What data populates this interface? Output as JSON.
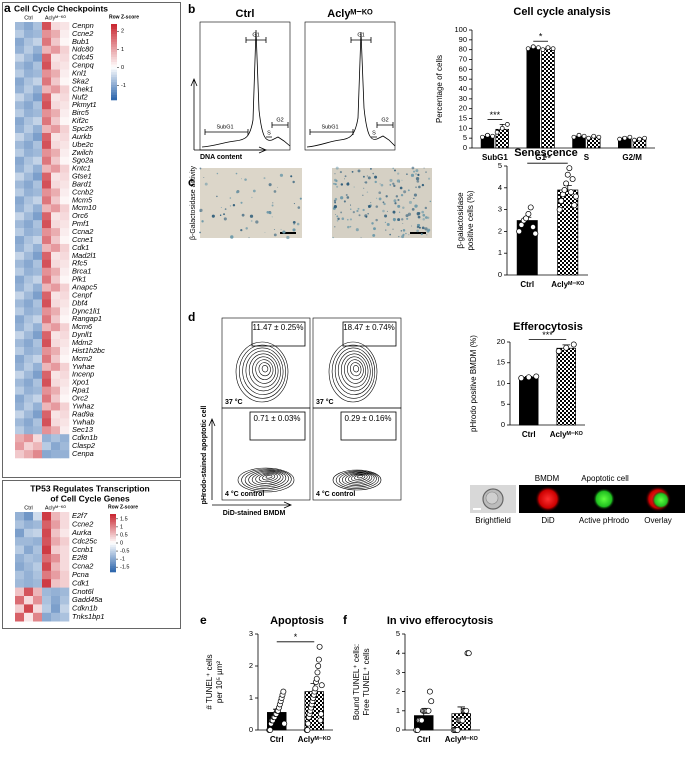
{
  "panels": [
    "a",
    "b",
    "c",
    "d",
    "e",
    "f"
  ],
  "flow_histograms": {
    "titles": [
      "Ctrl",
      "Aclyᴹ⁻ᴷᴼ"
    ],
    "gates": [
      "SubG1",
      "G1",
      "S",
      "G2"
    ],
    "x_label": "DNA content"
  },
  "senescence_images": {
    "y_label": "β-Galactosidase activity"
  },
  "flow_plots": {
    "percentages": [
      "11.47 ± 0.25%",
      "18.47 ± 0.74%",
      "0.71 ± 0.03%",
      "0.29 ± 0.16%"
    ],
    "conditions": [
      "37 °C",
      "4 °C control"
    ],
    "y_label": "pHrodo-stained apoptotic cell",
    "x_label": "DiD-stained BMDM"
  },
  "cell_images": {
    "top_labels": [
      "BMDM",
      "Apoptotic cell"
    ],
    "bottom_labels": [
      "Brightfield",
      "DiD",
      "Active pHrodo",
      "Overlay"
    ]
  },
  "chart_data": [
    {
      "type": "heatmap",
      "title": [
        "Cell Cycle Checkpoints"
      ],
      "columns": [
        "Ctrl",
        "Aclyᴹ⁻ᴷᴼ"
      ],
      "colorbar_label": "Row Z-score",
      "clim": [
        -1.8,
        2.4
      ],
      "colorbar_ticks": [
        2,
        1,
        0,
        -1
      ],
      "rows": [
        "Cenpn",
        "Ccne2",
        "Bub1",
        "Ndc80",
        "Cdc45",
        "Cenpq",
        "Knl1",
        "Ska2",
        "Chek1",
        "Nuf2",
        "Pkmyt1",
        "Birc5",
        "Kif2c",
        "Spc25",
        "Aurkb",
        "Ube2c",
        "Zwilch",
        "Sgo2a",
        "Kntc1",
        "Gtse1",
        "Bard1",
        "Ccnb2",
        "Mcm5",
        "Mcm10",
        "Orc6",
        "Pmf1",
        "Ccna2",
        "Ccne1",
        "Cdk1",
        "Mad2l1",
        "Rfc5",
        "Brca1",
        "Plk1",
        "Anapc5",
        "Cenpf",
        "Dbf4",
        "Dync1li1",
        "Rangap1",
        "Mcm6",
        "Dynll1",
        "Mdm2",
        "Hist1h2bc",
        "Mcm2",
        "Ywhae",
        "Incenp",
        "Xpo1",
        "Rpa1",
        "Orc2",
        "Ywhaz",
        "Rad9a",
        "Ywhab",
        "Sec13",
        "Cdkn1b",
        "Clasp2",
        "Cenpa"
      ],
      "values": [
        [
          -0.8,
          -1.0,
          -0.7,
          1.9,
          0.4,
          0.3
        ],
        [
          -0.6,
          -0.9,
          -0.8,
          1.2,
          0.9,
          0.2
        ],
        [
          -1.0,
          -0.7,
          -0.5,
          1.5,
          0.6,
          0.1
        ],
        [
          -0.9,
          -0.6,
          -0.9,
          0.8,
          1.1,
          0.5
        ],
        [
          -0.5,
          -0.8,
          -1.1,
          1.7,
          0.3,
          0.4
        ],
        [
          -0.8,
          -1.0,
          -0.7,
          1.9,
          0.4,
          0.3
        ],
        [
          -0.6,
          -0.9,
          -0.8,
          1.2,
          0.9,
          0.2
        ],
        [
          -1.0,
          -0.7,
          -0.5,
          1.5,
          0.6,
          0.1
        ],
        [
          -0.9,
          -0.6,
          -0.9,
          0.8,
          1.1,
          0.5
        ],
        [
          -0.5,
          -0.8,
          -1.1,
          1.7,
          0.3,
          0.4
        ],
        [
          -0.8,
          -1.0,
          -0.7,
          1.9,
          0.4,
          0.3
        ],
        [
          -0.6,
          -0.9,
          -0.8,
          1.2,
          0.9,
          0.2
        ],
        [
          -1.0,
          -0.7,
          -0.5,
          1.5,
          0.6,
          0.1
        ],
        [
          -0.9,
          -0.6,
          -0.9,
          0.8,
          1.1,
          0.5
        ],
        [
          -0.5,
          -0.8,
          -1.1,
          1.7,
          0.3,
          0.4
        ],
        [
          -0.8,
          -1.0,
          -0.7,
          1.9,
          0.4,
          0.3
        ],
        [
          -0.6,
          -0.9,
          -0.8,
          1.2,
          0.9,
          0.2
        ],
        [
          -1.0,
          -0.7,
          -0.5,
          1.5,
          0.6,
          0.1
        ],
        [
          -0.9,
          -0.6,
          -0.9,
          0.8,
          1.1,
          0.5
        ],
        [
          -0.5,
          -0.8,
          -1.1,
          1.7,
          0.3,
          0.4
        ],
        [
          -0.8,
          -1.0,
          -0.7,
          1.9,
          0.4,
          0.3
        ],
        [
          -0.6,
          -0.9,
          -0.8,
          1.2,
          0.9,
          0.2
        ],
        [
          -1.0,
          -0.7,
          -0.5,
          1.5,
          0.6,
          0.1
        ],
        [
          -0.9,
          -0.6,
          -0.9,
          0.8,
          1.1,
          0.5
        ],
        [
          -0.5,
          -0.8,
          -1.1,
          1.7,
          0.3,
          0.4
        ],
        [
          -0.8,
          -1.0,
          -0.7,
          1.9,
          0.4,
          0.3
        ],
        [
          -0.6,
          -0.9,
          -0.8,
          1.2,
          0.9,
          0.2
        ],
        [
          -1.0,
          -0.7,
          -0.5,
          1.5,
          0.6,
          0.1
        ],
        [
          -0.9,
          -0.6,
          -0.9,
          0.8,
          1.1,
          0.5
        ],
        [
          -0.5,
          -0.8,
          -1.1,
          1.7,
          0.3,
          0.4
        ],
        [
          -0.8,
          -1.0,
          -0.7,
          1.9,
          0.4,
          0.3
        ],
        [
          -0.6,
          -0.9,
          -0.8,
          1.2,
          0.9,
          0.2
        ],
        [
          -1.0,
          -0.7,
          -0.5,
          1.5,
          0.6,
          0.1
        ],
        [
          -0.9,
          -0.6,
          -0.9,
          0.8,
          1.1,
          0.5
        ],
        [
          -0.5,
          -0.8,
          -1.1,
          1.7,
          0.3,
          0.4
        ],
        [
          -0.8,
          -1.0,
          -0.7,
          1.9,
          0.4,
          0.3
        ],
        [
          -0.6,
          -0.9,
          -0.8,
          1.2,
          0.9,
          0.2
        ],
        [
          -1.0,
          -0.7,
          -0.5,
          1.5,
          0.6,
          0.1
        ],
        [
          -0.9,
          -0.6,
          -0.9,
          0.8,
          1.1,
          0.5
        ],
        [
          -0.5,
          -0.8,
          -1.1,
          1.7,
          0.3,
          0.4
        ],
        [
          -0.8,
          -1.0,
          -0.7,
          1.9,
          0.4,
          0.3
        ],
        [
          -0.6,
          -0.9,
          -0.8,
          1.2,
          0.9,
          0.2
        ],
        [
          -1.0,
          -0.7,
          -0.5,
          1.5,
          0.6,
          0.1
        ],
        [
          -0.9,
          -0.6,
          -0.9,
          0.8,
          1.1,
          0.5
        ],
        [
          -0.5,
          -0.8,
          -1.1,
          1.7,
          0.3,
          0.4
        ],
        [
          -0.8,
          -1.0,
          -0.7,
          1.9,
          0.4,
          0.3
        ],
        [
          -0.6,
          -0.9,
          -0.8,
          1.2,
          0.9,
          0.2
        ],
        [
          -1.0,
          -0.7,
          -0.5,
          1.5,
          0.6,
          0.1
        ],
        [
          -0.9,
          -0.6,
          -0.9,
          0.8,
          1.1,
          0.5
        ],
        [
          -0.5,
          -0.8,
          -1.1,
          1.7,
          0.3,
          0.4
        ],
        [
          -0.8,
          -1.0,
          -0.7,
          1.9,
          0.4,
          0.3
        ],
        [
          -0.6,
          -0.9,
          -0.8,
          1.2,
          0.9,
          0.2
        ],
        [
          0.9,
          1.2,
          0.4,
          -0.9,
          -0.7,
          -0.9
        ],
        [
          1.1,
          0.5,
          0.8,
          -0.6,
          -1.0,
          -0.8
        ],
        [
          0.6,
          0.9,
          1.3,
          -1.0,
          -0.9,
          -0.9
        ]
      ]
    },
    {
      "type": "heatmap",
      "title": [
        "TP53 Regulates Transcription",
        "of Cell Cycle Genes"
      ],
      "columns": [
        "Ctrl",
        "Aclyᴹ⁻ᴷᴼ"
      ],
      "colorbar_label": "Row Z-score",
      "clim": [
        -1.8,
        1.8
      ],
      "colorbar_ticks": [
        1.5,
        1,
        0.5,
        0,
        -0.5,
        -1,
        -1.5
      ],
      "rows": [
        "E2f7",
        "Ccne2",
        "Aurka",
        "Cdc25c",
        "Ccnb1",
        "E2f8",
        "Ccna2",
        "Pcna",
        "Cdk1",
        "Cnot6l",
        "Gadd45a",
        "Cdkn1b",
        "Tnks1bp1"
      ],
      "values": [
        [
          -0.9,
          -1.2,
          -0.4,
          1.6,
          0.6,
          0.3
        ],
        [
          -0.7,
          -0.9,
          -0.8,
          1.3,
          0.8,
          0.3
        ],
        [
          -1.1,
          -0.6,
          -0.5,
          1.5,
          0.5,
          0.2
        ],
        [
          -0.8,
          -0.8,
          -0.9,
          1.4,
          0.7,
          0.4
        ],
        [
          -0.6,
          -1.0,
          -0.7,
          1.6,
          0.4,
          0.3
        ],
        [
          -0.9,
          -0.7,
          -0.8,
          1.2,
          0.9,
          0.3
        ],
        [
          -1.0,
          -0.8,
          -0.6,
          1.5,
          0.6,
          0.3
        ],
        [
          -0.7,
          -0.9,
          -0.7,
          1.1,
          0.8,
          0.4
        ],
        [
          -0.8,
          -0.9,
          -0.8,
          1.6,
          0.5,
          0.4
        ],
        [
          0.5,
          1.4,
          0.6,
          -0.8,
          -0.9,
          -0.8
        ],
        [
          1.2,
          0.3,
          0.9,
          -0.7,
          -1.0,
          -0.7
        ],
        [
          0.4,
          1.5,
          0.3,
          -0.6,
          -1.1,
          -0.5
        ],
        [
          1.3,
          0.2,
          1.0,
          -1.0,
          -0.8,
          -0.7
        ]
      ]
    },
    {
      "type": "bar",
      "title": "Cell cycle analysis",
      "y_label": [
        "Percentage of cells"
      ],
      "categories": [
        "SubG1",
        "G1",
        "S",
        "G2/M"
      ],
      "series": [
        {
          "fill": "black",
          "values": [
            6,
            82,
            6,
            5
          ],
          "errors": [
            0.8,
            1.5,
            0.5,
            0.5
          ],
          "points": [
            [
              5.5,
              6.5,
              6
            ],
            [
              81,
              83,
              82
            ],
            [
              5.5,
              6.5,
              6
            ],
            [
              4.5,
              5,
              5.5
            ]
          ]
        },
        {
          "fill": "checkered",
          "values": [
            9.5,
            81,
            5.5,
            4.5
          ],
          "errors": [
            2.5,
            1.5,
            0.6,
            0.5
          ],
          "points": [
            [
              8,
              10,
              12
            ],
            [
              80,
              82,
              81
            ],
            [
              5,
              6,
              5.5
            ],
            [
              4,
              4.5,
              5
            ]
          ]
        }
      ],
      "significance": [
        "***",
        "*",
        null,
        null
      ],
      "ylim": [
        0,
        100
      ],
      "yticks": [
        0,
        5,
        10,
        15,
        20,
        30,
        40,
        50,
        60,
        70,
        80,
        90,
        100
      ]
    },
    {
      "type": "bar",
      "title": "Senescence",
      "y_label": [
        "β-galactosidase",
        "positive cells (%)"
      ],
      "categories": [
        "Ctrl",
        "Aclyᴹ⁻ᴷᴼ"
      ],
      "series": [
        {
          "fills": [
            "black",
            "checkered"
          ],
          "values": [
            2.5,
            3.9
          ],
          "errors": [
            0.15,
            0.2
          ],
          "points": [
            [
              2.0,
              2.3,
              2.5,
              2.6,
              2.8,
              3.1,
              2.2,
              1.9
            ],
            [
              3.0,
              3.4,
              3.7,
              3.9,
              4.2,
              4.6,
              4.9,
              3.8,
              4.4,
              3.2,
              3.6
            ]
          ]
        }
      ],
      "significance": [
        "**"
      ],
      "ylim": [
        0,
        5
      ],
      "yticks": [
        0,
        1,
        2,
        3,
        4,
        5
      ]
    },
    {
      "type": "bar",
      "title": "Efferocytosis",
      "y_label": [
        "pHrodo positive BMDM (%)"
      ],
      "categories": [
        "Ctrl",
        "Aclyᴹ⁻ᴷᴼ"
      ],
      "series": [
        {
          "fills": [
            "black",
            "checkered"
          ],
          "values": [
            11.5,
            18.5
          ],
          "errors": [
            0.2,
            0.8
          ],
          "points": [
            [
              11.3,
              11.5,
              11.7
            ],
            [
              17.8,
              18.6,
              19.4
            ]
          ]
        }
      ],
      "significance": [
        "***"
      ],
      "ylim": [
        0,
        20
      ],
      "yticks": [
        0,
        5,
        10,
        15,
        20
      ]
    },
    {
      "type": "bar",
      "title": "Apoptosis",
      "y_label": [
        "# TUNEL⁺ cells",
        "per 10⁵ µm²"
      ],
      "categories": [
        "Ctrl",
        "Aclyᴹ⁻ᴷᴼ"
      ],
      "series": [
        {
          "fills": [
            "black",
            "checkered"
          ],
          "values": [
            0.55,
            1.2
          ],
          "errors": [
            0.1,
            0.25
          ],
          "points": [
            [
              0,
              0,
              0.2,
              0.3,
              0.3,
              0.4,
              0.4,
              0.5,
              0.5,
              0.6,
              0.6,
              0.7,
              0.8,
              0.9,
              1.0,
              1.1,
              1.2,
              0.2
            ],
            [
              0,
              0,
              0.2,
              0.4,
              0.5,
              0.6,
              0.7,
              0.8,
              0.9,
              1.0,
              1.1,
              1.2,
              1.3,
              1.5,
              1.6,
              1.8,
              2.0,
              2.2,
              2.6,
              0.3,
              0.5,
              1.4
            ]
          ]
        }
      ],
      "significance": [
        "*"
      ],
      "ylim": [
        0,
        3
      ],
      "yticks": [
        0,
        1,
        2,
        3
      ]
    },
    {
      "type": "bar",
      "title": "In vivo efferocytosis",
      "y_label": [
        "Bound TUNEL⁺ cells:",
        "Free TUNEL⁺ cells"
      ],
      "categories": [
        "Ctrl",
        "Aclyᴹ⁻ᴷᴼ"
      ],
      "series": [
        {
          "fills": [
            "black",
            "checkered"
          ],
          "values": [
            0.75,
            0.85
          ],
          "errors": [
            0.2,
            0.35
          ],
          "points": [
            [
              0,
              0,
              0.5,
              0.5,
              0.5,
              1,
              1,
              1,
              1,
              1,
              2,
              1.5
            ],
            [
              0,
              0,
              0,
              0,
              0.5,
              0.5,
              0.5,
              0.5,
              1,
              1,
              1,
              4,
              4
            ]
          ]
        }
      ],
      "ylim": [
        0,
        5
      ],
      "yticks": [
        0,
        1,
        2,
        3,
        4,
        5
      ]
    }
  ]
}
